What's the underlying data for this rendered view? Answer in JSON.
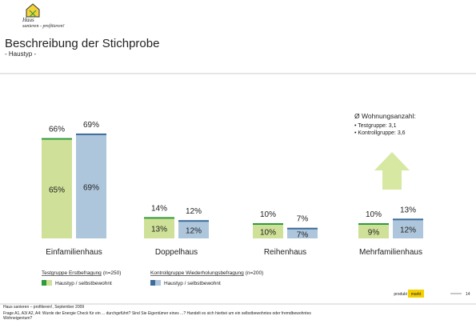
{
  "header": {
    "logo_top": "Haus",
    "logo_bottom": "sanieren - profitieren!",
    "title": "Beschreibung der Stichprobe",
    "subtitle": "- Haustyp -"
  },
  "chart_data": {
    "type": "bar",
    "categories": [
      "Einfamilienhaus",
      "Doppelhaus",
      "Reihenhaus",
      "Mehrfamilienhaus"
    ],
    "series": [
      {
        "name": "Testgruppe Erstbefragung",
        "n": "(n=250)",
        "sub_name": "Haustyp / selbstbewohnt",
        "color": "#2e9a3a",
        "inner_color": "#cfe098",
        "values": [
          66,
          14,
          10,
          10
        ],
        "value_labels": [
          "66%",
          "14%",
          "10%",
          "10%"
        ],
        "inner_values": [
          65,
          13,
          10,
          9
        ],
        "inner_labels": [
          "65%",
          "13%",
          "10%",
          "9%"
        ]
      },
      {
        "name": "Kontrollgruppe Wiederholungsbefragung",
        "n": "(n=200)",
        "sub_name": "Haustyp / selbstbewohnt",
        "color": "#3d6b9a",
        "inner_color": "#adc6dc",
        "values": [
          69,
          12,
          7,
          13
        ],
        "value_labels": [
          "69%",
          "12%",
          "7%",
          "13%"
        ],
        "inner_values": [
          69,
          12,
          7,
          12
        ],
        "inner_labels": [
          "69%",
          "12%",
          "7%",
          "12%"
        ]
      }
    ],
    "annotation": {
      "title": "Ø Wohnungsanzahl:",
      "lines": [
        "• Testgruppe: 3,1",
        "• Kontrollgruppe: 3,6"
      ]
    }
  },
  "footer": {
    "source": "Haus sanieren – profitieren!, September 2009",
    "question_lines": [
      "Frage A1, A3/ A2, A4: Wurde der Energie Check für ein ... durchgeführt? Sind Sie Eigentümer eines ...? Handelt es sich hierbei um ein selbstbewohntes oder fremdbewohntes",
      "Wohneigentum?"
    ],
    "brand_left": "produkt",
    "brand_right": "markt",
    "page": "14"
  }
}
